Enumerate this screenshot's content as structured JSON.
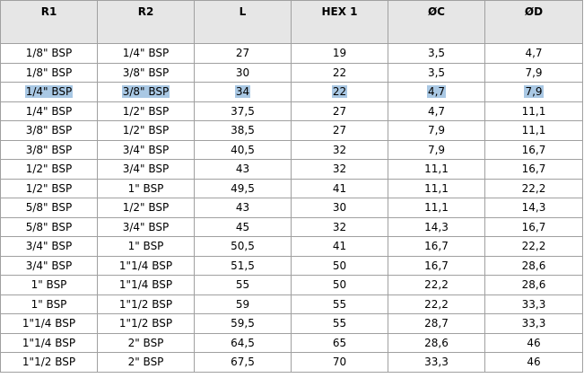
{
  "table": {
    "columns": [
      "R1",
      "R2",
      "L",
      "HEX 1",
      "ØC",
      "ØD"
    ],
    "highlight_color": "#a9c8e4",
    "highlighted_row_index": 2,
    "rows": [
      [
        "1/8\" BSP",
        "1/4\" BSP",
        "27",
        "19",
        "3,5",
        "4,7"
      ],
      [
        "1/8\" BSP",
        "3/8\" BSP",
        "30",
        "22",
        "3,5",
        "7,9"
      ],
      [
        "1/4\" BSP",
        "3/8\" BSP",
        "34",
        "22",
        "4,7",
        "7,9"
      ],
      [
        "1/4\" BSP",
        "1/2\" BSP",
        "37,5",
        "27",
        "4,7",
        "11,1"
      ],
      [
        "3/8\" BSP",
        "1/2\" BSP",
        "38,5",
        "27",
        "7,9",
        "11,1"
      ],
      [
        "3/8\" BSP",
        "3/4\" BSP",
        "40,5",
        "32",
        "7,9",
        "16,7"
      ],
      [
        "1/2\" BSP",
        "3/4\" BSP",
        "43",
        "32",
        "11,1",
        "16,7"
      ],
      [
        "1/2\" BSP",
        "1\" BSP",
        "49,5",
        "41",
        "11,1",
        "22,2"
      ],
      [
        "5/8\" BSP",
        "1/2\" BSP",
        "43",
        "30",
        "11,1",
        "14,3"
      ],
      [
        "5/8\" BSP",
        "3/4\" BSP",
        "45",
        "32",
        "14,3",
        "16,7"
      ],
      [
        "3/4\" BSP",
        "1\" BSP",
        "50,5",
        "41",
        "16,7",
        "22,2"
      ],
      [
        "3/4\" BSP",
        "1\"1/4 BSP",
        "51,5",
        "50",
        "16,7",
        "28,6"
      ],
      [
        "1\" BSP",
        "1\"1/4 BSP",
        "55",
        "50",
        "22,2",
        "28,6"
      ],
      [
        "1\" BSP",
        "1\"1/2 BSP",
        "59",
        "55",
        "22,2",
        "33,3"
      ],
      [
        "1\"1/4 BSP",
        "1\"1/2 BSP",
        "59,5",
        "55",
        "28,7",
        "33,3"
      ],
      [
        "1\"1/4 BSP",
        "2\" BSP",
        "64,5",
        "65",
        "28,6",
        "46"
      ],
      [
        "1\"1/2 BSP",
        "2\" BSP",
        "67,5",
        "70",
        "33,3",
        "46"
      ]
    ]
  }
}
